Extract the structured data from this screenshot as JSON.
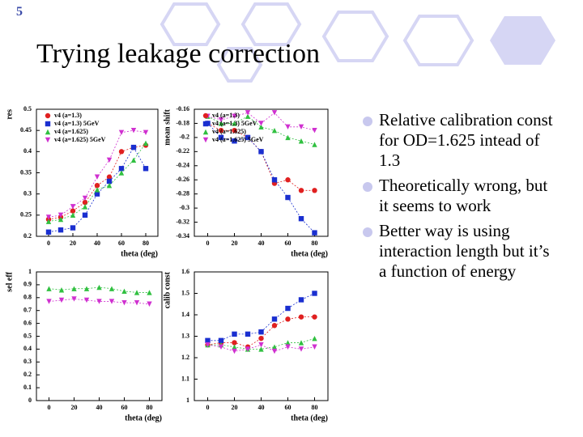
{
  "slide": {
    "number": "5",
    "title": "Trying leakage correction",
    "bullets": [
      "Relative calibration const for OD=1.625 intead of 1.3",
      "Theoretically wrong, but it seems to work",
      "Better way is using interaction length but it’s a function of energy"
    ]
  },
  "chart_data": [
    {
      "type": "line",
      "ylabel": "res",
      "xlabel": "theta (deg)",
      "legend": "top-left",
      "x": [
        0,
        10,
        20,
        30,
        40,
        50,
        60,
        70,
        80
      ],
      "xlim": [
        -10,
        90
      ],
      "xticks": [
        0,
        20,
        40,
        60,
        80
      ],
      "ylim": [
        0.2,
        0.5
      ],
      "yticks": [
        0.2,
        0.25,
        0.3,
        0.35,
        0.4,
        0.45,
        0.5
      ],
      "series": [
        {
          "name": "v4 (a=1.3)",
          "color": "#e02020",
          "marker": "circle",
          "values": [
            0.24,
            0.245,
            0.26,
            0.28,
            0.32,
            0.34,
            0.4,
            0.41,
            0.415
          ]
        },
        {
          "name": "v4 (a=1.3) 5GeV",
          "color": "#1a2fd0",
          "marker": "square",
          "values": [
            0.21,
            0.215,
            0.22,
            0.25,
            0.3,
            0.33,
            0.36,
            0.41,
            0.36
          ]
        },
        {
          "name": "v4 (a=1.625)",
          "color": "#30c040",
          "marker": "triangle",
          "values": [
            0.235,
            0.24,
            0.25,
            0.27,
            0.31,
            0.32,
            0.35,
            0.38,
            0.42
          ]
        },
        {
          "name": "v4 (a=1.625) 5GeV",
          "color": "#d030d0",
          "marker": "down-triangle",
          "values": [
            0.245,
            0.25,
            0.27,
            0.29,
            0.34,
            0.38,
            0.445,
            0.45,
            0.445
          ]
        }
      ]
    },
    {
      "type": "line",
      "ylabel": "mean shift",
      "xlabel": "theta (deg)",
      "legend": "top-left",
      "x": [
        0,
        10,
        20,
        30,
        40,
        50,
        60,
        70,
        80
      ],
      "xlim": [
        -10,
        90
      ],
      "xticks": [
        0,
        20,
        40,
        60,
        80
      ],
      "ylim": [
        -0.34,
        -0.16
      ],
      "yticks": [
        -0.34,
        -0.32,
        -0.3,
        -0.28,
        -0.26,
        -0.24,
        -0.22,
        -0.2,
        -0.18,
        -0.16
      ],
      "series": [
        {
          "name": "v4 (a=1.3)",
          "color": "#e02020",
          "marker": "circle",
          "values": [
            -0.18,
            -0.19,
            -0.19,
            -0.2,
            -0.22,
            -0.265,
            -0.26,
            -0.275,
            -0.275
          ]
        },
        {
          "name": "v4 (a=1.3) 5GeV",
          "color": "#1a2fd0",
          "marker": "square",
          "values": [
            -0.18,
            -0.2,
            -0.205,
            -0.2,
            -0.22,
            -0.26,
            -0.285,
            -0.315,
            -0.335
          ]
        },
        {
          "name": "v4 (a=1.625)",
          "color": "#30c040",
          "marker": "triangle",
          "values": [
            -0.17,
            -0.18,
            -0.18,
            -0.17,
            -0.185,
            -0.19,
            -0.2,
            -0.205,
            -0.21
          ]
        },
        {
          "name": "v4 (a=1.625) 5GeV",
          "color": "#d030d0",
          "marker": "down-triangle",
          "values": [
            -0.17,
            -0.175,
            -0.17,
            -0.165,
            -0.18,
            -0.165,
            -0.185,
            -0.185,
            -0.19
          ]
        }
      ]
    },
    {
      "type": "line",
      "ylabel": "sel eff",
      "xlabel": "theta (deg)",
      "x": [
        0,
        10,
        20,
        30,
        40,
        50,
        60,
        70,
        80
      ],
      "xlim": [
        -10,
        90
      ],
      "xticks": [
        0,
        20,
        40,
        60,
        80
      ],
      "ylim": [
        0,
        1
      ],
      "yticks": [
        0,
        0.1,
        0.2,
        0.3,
        0.4,
        0.5,
        0.6,
        0.7,
        0.8,
        0.9,
        1
      ],
      "series": [
        {
          "color": "#30c040",
          "marker": "triangle",
          "values": [
            0.87,
            0.86,
            0.87,
            0.87,
            0.88,
            0.87,
            0.85,
            0.84,
            0.84
          ]
        },
        {
          "color": "#d030d0",
          "marker": "down-triangle",
          "values": [
            0.77,
            0.78,
            0.79,
            0.78,
            0.77,
            0.77,
            0.76,
            0.76,
            0.75
          ]
        }
      ]
    },
    {
      "type": "line",
      "ylabel": "calib const",
      "xlabel": "theta (deg)",
      "x": [
        0,
        10,
        20,
        30,
        40,
        50,
        60,
        70,
        80
      ],
      "xlim": [
        -10,
        90
      ],
      "xticks": [
        0,
        20,
        40,
        60,
        80
      ],
      "ylim": [
        1,
        1.6
      ],
      "yticks": [
        1,
        1.1,
        1.2,
        1.3,
        1.4,
        1.5,
        1.6
      ],
      "series": [
        {
          "color": "#e02020",
          "marker": "circle",
          "values": [
            1.26,
            1.27,
            1.27,
            1.25,
            1.29,
            1.35,
            1.38,
            1.39,
            1.39
          ]
        },
        {
          "color": "#1a2fd0",
          "marker": "square",
          "values": [
            1.28,
            1.28,
            1.31,
            1.31,
            1.32,
            1.38,
            1.43,
            1.47,
            1.5
          ]
        },
        {
          "color": "#30c040",
          "marker": "triangle",
          "values": [
            1.26,
            1.26,
            1.25,
            1.24,
            1.24,
            1.25,
            1.27,
            1.27,
            1.29
          ]
        },
        {
          "color": "#d030d0",
          "marker": "down-triangle",
          "values": [
            1.26,
            1.25,
            1.23,
            1.24,
            1.26,
            1.23,
            1.25,
            1.24,
            1.25
          ]
        }
      ]
    }
  ]
}
